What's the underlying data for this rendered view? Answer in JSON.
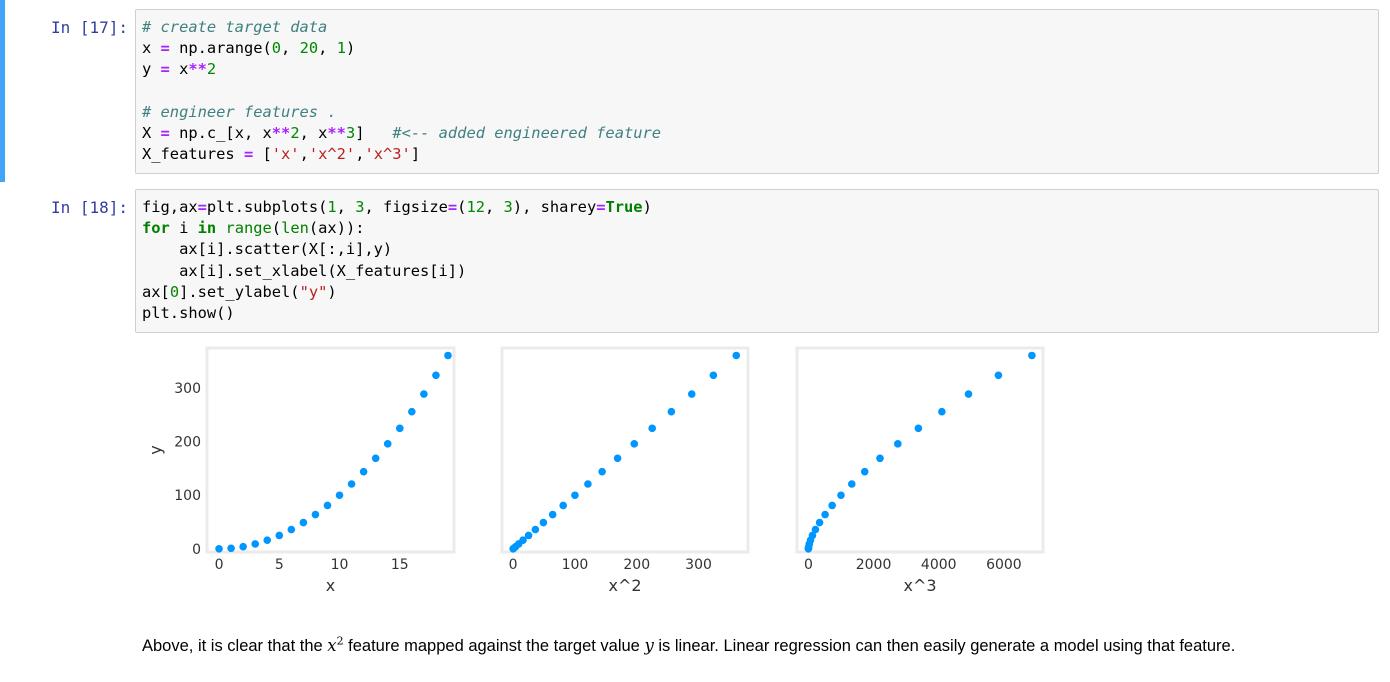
{
  "cells": [
    {
      "prompt": "In [17]:",
      "lines": [
        [
          [
            "cm",
            "# create target data"
          ]
        ],
        [
          [
            "",
            "x "
          ],
          [
            "op",
            "="
          ],
          [
            "",
            " np.arange("
          ],
          [
            "num",
            "0"
          ],
          [
            "",
            ", "
          ],
          [
            "num",
            "20"
          ],
          [
            "",
            ", "
          ],
          [
            "num",
            "1"
          ],
          [
            "",
            ")"
          ]
        ],
        [
          [
            "",
            "y "
          ],
          [
            "op",
            "="
          ],
          [
            "",
            " x"
          ],
          [
            "op",
            "**"
          ],
          [
            "num",
            "2"
          ]
        ],
        [],
        [
          [
            "cm",
            "# engineer features ."
          ]
        ],
        [
          [
            "",
            "X "
          ],
          [
            "op",
            "="
          ],
          [
            "",
            " np.c_[x, x"
          ],
          [
            "op",
            "**"
          ],
          [
            "num",
            "2"
          ],
          [
            "",
            ", x"
          ],
          [
            "op",
            "**"
          ],
          [
            "num",
            "3"
          ],
          [
            "",
            "]   "
          ],
          [
            "cm",
            "#<-- added engineered feature"
          ]
        ],
        [
          [
            "",
            "X_features "
          ],
          [
            "op",
            "="
          ],
          [
            "",
            " ["
          ],
          [
            "str",
            "'x'"
          ],
          [
            "",
            ","
          ],
          [
            "str",
            "'x^2'"
          ],
          [
            "",
            ","
          ],
          [
            "str",
            "'x^3'"
          ],
          [
            "",
            "]"
          ]
        ]
      ]
    },
    {
      "prompt": "In [18]:",
      "lines": [
        [
          [
            "",
            "fig,ax"
          ],
          [
            "op",
            "="
          ],
          [
            "",
            "plt.subplots("
          ],
          [
            "num",
            "1"
          ],
          [
            "",
            ", "
          ],
          [
            "num",
            "3"
          ],
          [
            "",
            ", figsize"
          ],
          [
            "op",
            "="
          ],
          [
            "",
            "("
          ],
          [
            "num",
            "12"
          ],
          [
            "",
            ", "
          ],
          [
            "num",
            "3"
          ],
          [
            "",
            "), sharey"
          ],
          [
            "op",
            "="
          ],
          [
            "kw",
            "True"
          ],
          [
            "",
            ")"
          ]
        ],
        [
          [
            "kw",
            "for"
          ],
          [
            "",
            " i "
          ],
          [
            "kw",
            "in"
          ],
          [
            "",
            " "
          ],
          [
            "bi",
            "range"
          ],
          [
            "",
            "("
          ],
          [
            "bi",
            "len"
          ],
          [
            "",
            "(ax)):"
          ]
        ],
        [
          [
            "",
            "    ax[i].scatter(X[:,i],y)"
          ]
        ],
        [
          [
            "",
            "    ax[i].set_xlabel(X_features[i])"
          ]
        ],
        [
          [
            "",
            "ax["
          ],
          [
            "num",
            "0"
          ],
          [
            "",
            "].set_ylabel("
          ],
          [
            "str",
            "\"y\""
          ],
          [
            "",
            ")"
          ]
        ],
        [
          [
            "",
            "plt.show()"
          ]
        ]
      ]
    }
  ],
  "chart_data": [
    {
      "type": "scatter",
      "xlabel": "x",
      "ylabel": "y",
      "xlim": [
        -1,
        19.5
      ],
      "ylim": [
        -6,
        375
      ],
      "xticks": [
        0,
        5,
        10,
        15
      ],
      "yticks": [
        0,
        100,
        200,
        300
      ],
      "x": [
        0,
        1,
        2,
        3,
        4,
        5,
        6,
        7,
        8,
        9,
        10,
        11,
        12,
        13,
        14,
        15,
        16,
        17,
        18,
        19
      ],
      "y": [
        0,
        1,
        4,
        9,
        16,
        25,
        36,
        49,
        64,
        81,
        100,
        121,
        144,
        169,
        196,
        225,
        256,
        289,
        324,
        361
      ],
      "color": "#0096ff"
    },
    {
      "type": "scatter",
      "xlabel": "x^2",
      "ylabel": "",
      "xlim": [
        -18,
        380
      ],
      "ylim": [
        -6,
        375
      ],
      "xticks": [
        0,
        100,
        200,
        300
      ],
      "yticks": [
        0,
        100,
        200,
        300
      ],
      "x": [
        0,
        1,
        4,
        9,
        16,
        25,
        36,
        49,
        64,
        81,
        100,
        121,
        144,
        169,
        196,
        225,
        256,
        289,
        324,
        361
      ],
      "y": [
        0,
        1,
        4,
        9,
        16,
        25,
        36,
        49,
        64,
        81,
        100,
        121,
        144,
        169,
        196,
        225,
        256,
        289,
        324,
        361
      ],
      "color": "#0096ff"
    },
    {
      "type": "scatter",
      "xlabel": "x^3",
      "ylabel": "",
      "xlim": [
        -350,
        7200
      ],
      "ylim": [
        -6,
        375
      ],
      "xticks": [
        0,
        2000,
        4000,
        6000
      ],
      "yticks": [
        0,
        100,
        200,
        300
      ],
      "x": [
        0,
        1,
        8,
        27,
        64,
        125,
        216,
        343,
        512,
        729,
        1000,
        1331,
        1728,
        2197,
        2744,
        3375,
        4096,
        4913,
        5832,
        6859
      ],
      "y": [
        0,
        1,
        4,
        9,
        16,
        25,
        36,
        49,
        64,
        81,
        100,
        121,
        144,
        169,
        196,
        225,
        256,
        289,
        324,
        361
      ],
      "color": "#0096ff"
    }
  ],
  "markdown": {
    "p1": "Above, it is clear that the ",
    "var_x": "x",
    "sup2": "2",
    "p2": " feature mapped against the target value ",
    "var_y": "y",
    "p3": " is linear. Linear regression can then easily generate a model using that feature."
  }
}
